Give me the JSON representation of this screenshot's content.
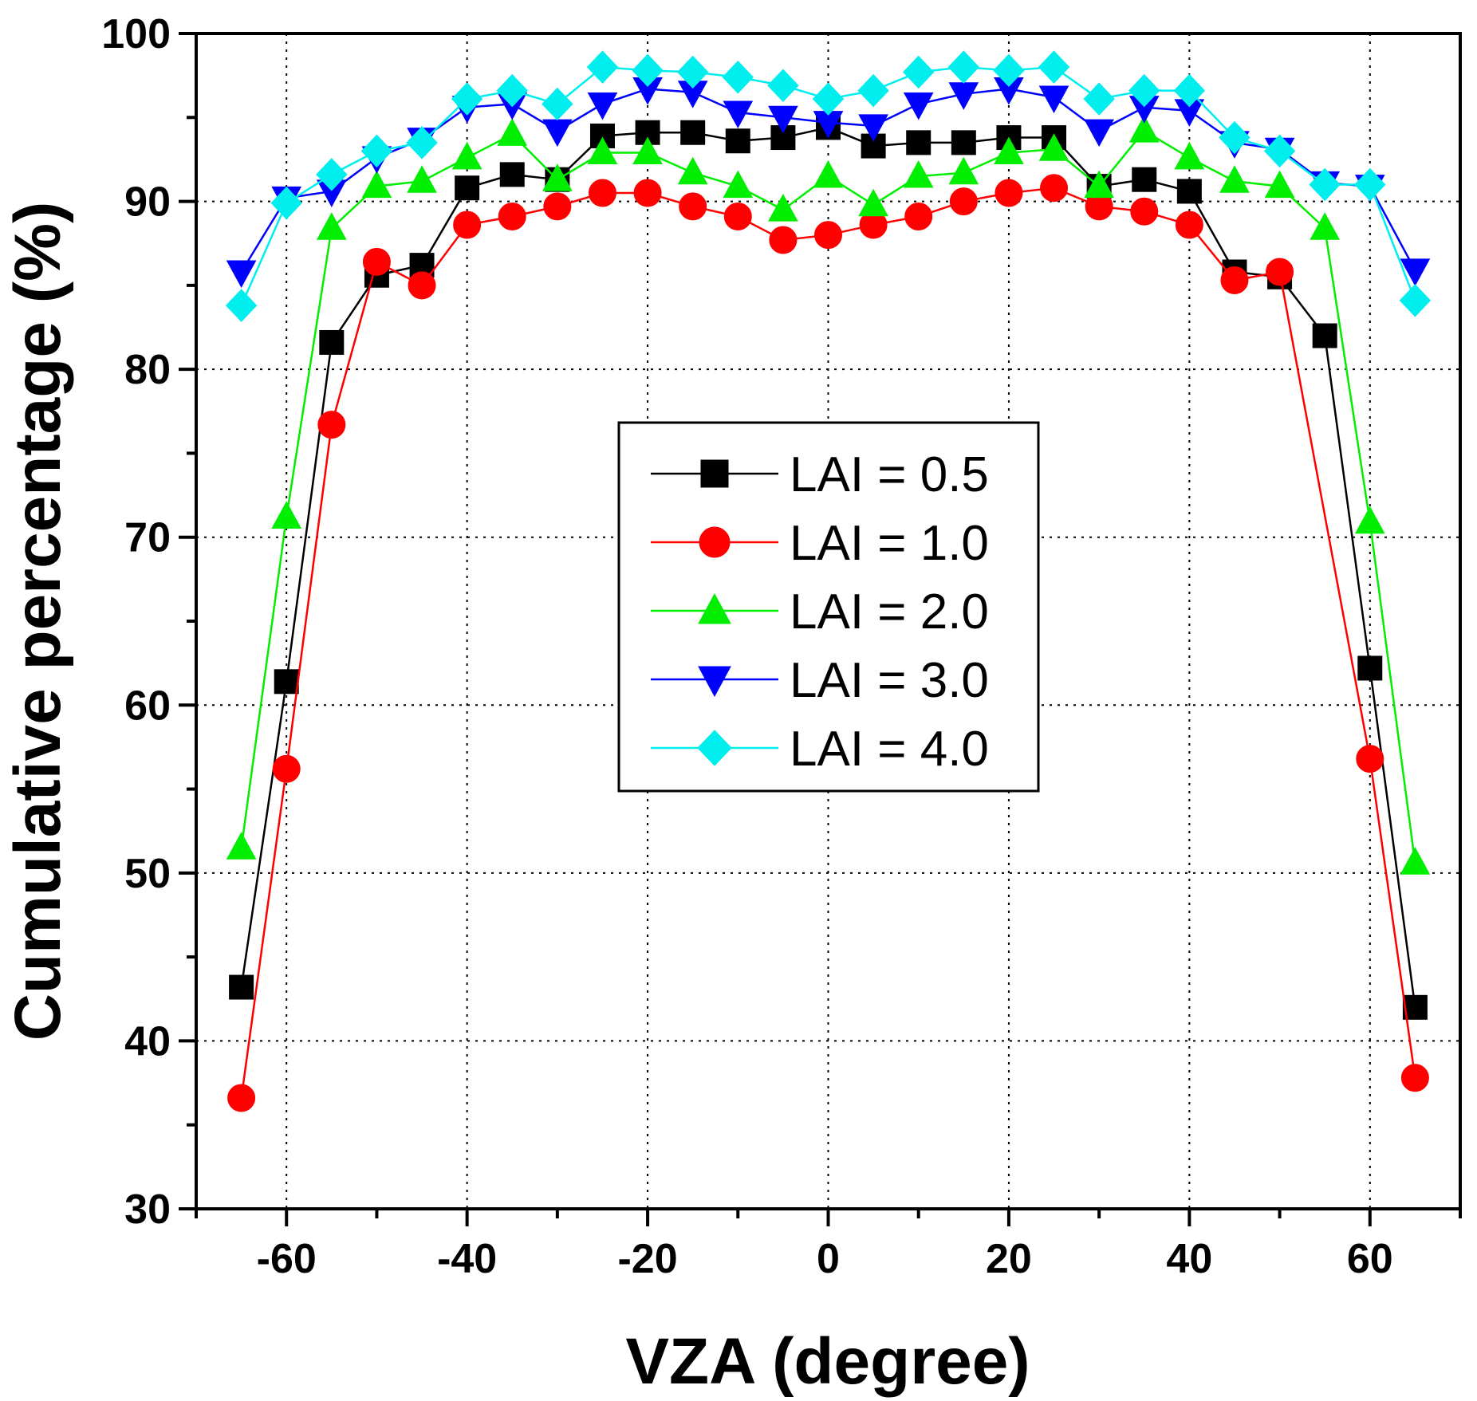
{
  "chart_data": {
    "type": "line",
    "title": "",
    "xlabel": "VZA (degree)",
    "ylabel": "Cumulative percentage (%)",
    "xlim": [
      -70,
      70
    ],
    "ylim": [
      30,
      100
    ],
    "xticks": [
      -60,
      -40,
      -20,
      0,
      20,
      40,
      60
    ],
    "yticks": [
      30,
      40,
      50,
      60,
      70,
      80,
      90,
      100
    ],
    "grid": true,
    "legend_position": "center",
    "x": [
      -65,
      -60,
      -55,
      -50,
      -45,
      -40,
      -35,
      -30,
      -25,
      -20,
      -15,
      -10,
      -5,
      0,
      5,
      10,
      15,
      20,
      25,
      30,
      35,
      40,
      45,
      50,
      55,
      60,
      65
    ],
    "series": [
      {
        "name": "LAI = 0.5",
        "color": "#000000",
        "marker": "square",
        "values": [
          43.2,
          61.4,
          81.6,
          85.6,
          86.2,
          90.8,
          91.6,
          91.3,
          93.9,
          94.1,
          94.1,
          93.6,
          93.8,
          94.4,
          93.3,
          93.5,
          93.5,
          93.8,
          93.8,
          90.9,
          91.3,
          90.6,
          85.8,
          85.5,
          82.0,
          62.2,
          42.0
        ]
      },
      {
        "name": "LAI = 1.0",
        "color": "#ff0000",
        "marker": "circle",
        "values": [
          36.6,
          56.2,
          76.7,
          86.4,
          85.0,
          88.6,
          89.1,
          89.7,
          90.5,
          90.5,
          89.7,
          89.1,
          87.7,
          88.0,
          88.6,
          89.1,
          90.0,
          90.5,
          90.8,
          89.7,
          89.4,
          88.6,
          85.3,
          85.8,
          null,
          56.8,
          37.8
        ]
      },
      {
        "name": "LAI = 2.0",
        "color": "#00ee00",
        "marker": "triangle-up",
        "values": [
          51.5,
          71.2,
          88.4,
          90.9,
          91.2,
          92.6,
          94.0,
          91.3,
          92.9,
          92.9,
          91.7,
          90.9,
          89.5,
          91.5,
          89.8,
          91.5,
          91.7,
          92.9,
          93.1,
          90.9,
          94.2,
          92.6,
          91.2,
          90.9,
          88.4,
          70.9,
          50.6
        ]
      },
      {
        "name": "LAI = 3.0",
        "color": "#0000ff",
        "marker": "triangle-down",
        "values": [
          85.8,
          90.2,
          90.6,
          92.6,
          93.7,
          95.6,
          95.8,
          94.2,
          95.8,
          96.7,
          96.5,
          95.3,
          95.0,
          94.7,
          94.5,
          95.8,
          96.4,
          96.7,
          96.2,
          94.2,
          95.6,
          95.4,
          93.5,
          93.1,
          91.1,
          90.9,
          85.9
        ]
      },
      {
        "name": "LAI = 4.0",
        "color": "#00eeee",
        "marker": "diamond",
        "values": [
          83.8,
          89.9,
          91.6,
          93.0,
          93.5,
          96.1,
          96.6,
          95.8,
          98.0,
          97.8,
          97.7,
          97.4,
          96.9,
          96.1,
          96.6,
          97.7,
          98.0,
          97.8,
          98.0,
          96.1,
          96.6,
          96.6,
          93.8,
          93.0,
          91.0,
          91.0,
          84.1
        ]
      }
    ]
  }
}
